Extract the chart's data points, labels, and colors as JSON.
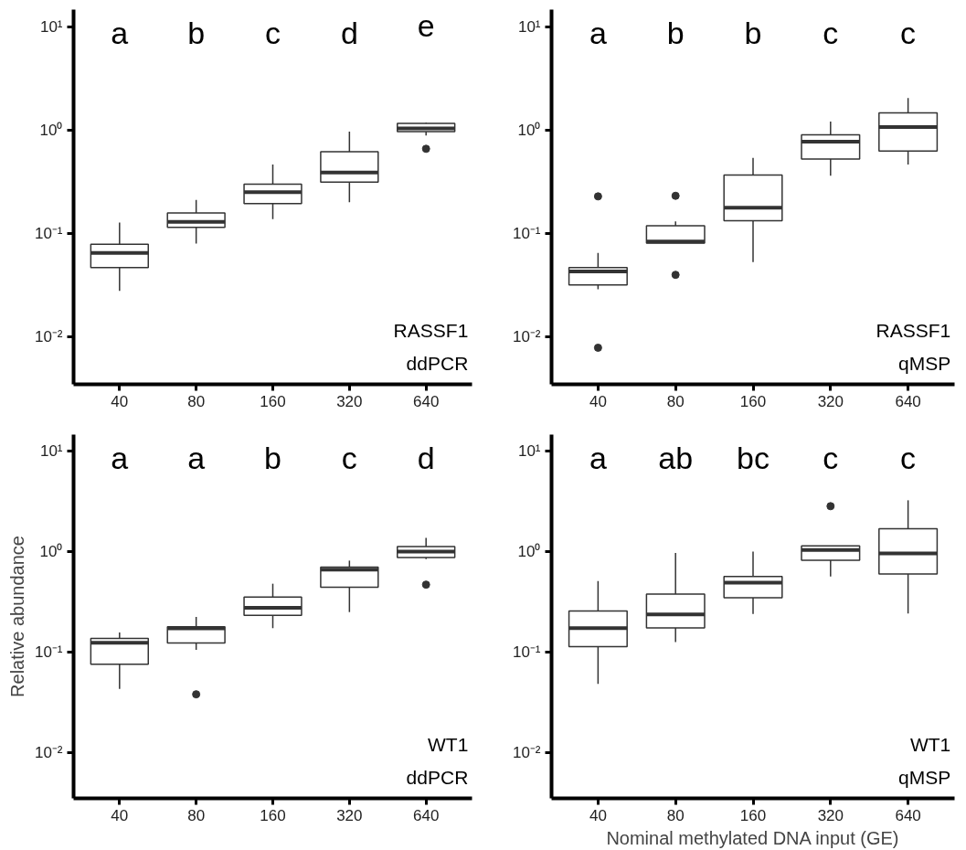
{
  "chart_data": [
    {
      "type": "box",
      "title": "RASSF1",
      "subtitle": "ddPCR",
      "categories": [
        "40",
        "80",
        "160",
        "320",
        "640"
      ],
      "log": true,
      "grid": false,
      "ylim": [
        0.0035,
        14.6
      ],
      "yticks": [
        {
          "value": 0.01,
          "label": "10⁻²"
        },
        {
          "value": 0.1,
          "label": "10⁻¹"
        },
        {
          "value": 1,
          "label": "10⁰"
        },
        {
          "value": 10,
          "label": "10¹"
        }
      ],
      "series": [
        {
          "color": "#333333",
          "boxes": [
            {
              "low": 0.028,
              "q1": 0.047,
              "median": 0.065,
              "q3": 0.079,
              "high": 0.128
            },
            {
              "low": 0.08,
              "q1": 0.115,
              "median": 0.13,
              "q3": 0.158,
              "high": 0.212
            },
            {
              "low": 0.138,
              "q1": 0.195,
              "median": 0.252,
              "q3": 0.301,
              "high": 0.465
            },
            {
              "low": 0.201,
              "q1": 0.314,
              "median": 0.389,
              "q3": 0.62,
              "high": 0.965
            },
            {
              "low": 0.885,
              "q1": 0.965,
              "median": 1.04,
              "q3": 1.16,
              "high": 1.18,
              "outliers": [
                0.66
              ]
            }
          ]
        }
      ],
      "annotations": [
        "a",
        "b",
        "c",
        "d",
        "e"
      ]
    },
    {
      "type": "box",
      "title": "RASSF1",
      "subtitle": "qMSP",
      "categories": [
        "40",
        "80",
        "160",
        "320",
        "640"
      ],
      "log": true,
      "grid": false,
      "ylim": [
        0.0035,
        14.6
      ],
      "yticks": [
        {
          "value": 0.01,
          "label": "10⁻²"
        },
        {
          "value": 0.1,
          "label": "10⁻¹"
        },
        {
          "value": 1,
          "label": "10⁰"
        },
        {
          "value": 10,
          "label": "10¹"
        }
      ],
      "series": [
        {
          "color": "#333333",
          "boxes": [
            {
              "low": 0.029,
              "q1": 0.032,
              "median": 0.043,
              "q3": 0.047,
              "high": 0.065,
              "outliers": [
                0.229,
                0.0079
              ]
            },
            {
              "low": 0.081,
              "q1": 0.081,
              "median": 0.084,
              "q3": 0.119,
              "high": 0.131,
              "outliers": [
                0.232,
                0.04
              ]
            },
            {
              "low": 0.053,
              "q1": 0.133,
              "median": 0.178,
              "q3": 0.369,
              "high": 0.538
            },
            {
              "low": 0.363,
              "q1": 0.526,
              "median": 0.774,
              "q3": 0.9,
              "high": 1.21
            },
            {
              "low": 0.466,
              "q1": 0.629,
              "median": 1.07,
              "q3": 1.47,
              "high": 2.04
            }
          ]
        }
      ],
      "annotations": [
        "a",
        "b",
        "b",
        "c",
        "c"
      ]
    },
    {
      "type": "box",
      "title": "WT1",
      "subtitle": "ddPCR",
      "ylabel": "Relative abundance",
      "categories": [
        "40",
        "80",
        "160",
        "320",
        "640"
      ],
      "log": true,
      "grid": false,
      "ylim": [
        0.0035,
        14.6
      ],
      "yticks": [
        {
          "value": 0.01,
          "label": "10⁻²"
        },
        {
          "value": 0.1,
          "label": "10⁻¹"
        },
        {
          "value": 1,
          "label": "10⁰"
        },
        {
          "value": 10,
          "label": "10¹"
        }
      ],
      "series": [
        {
          "color": "#333333",
          "boxes": [
            {
              "low": 0.043,
              "q1": 0.0757,
              "median": 0.124,
              "q3": 0.137,
              "high": 0.157
            },
            {
              "low": 0.105,
              "q1": 0.123,
              "median": 0.172,
              "q3": 0.179,
              "high": 0.224,
              "outliers": [
                0.038
              ]
            },
            {
              "low": 0.173,
              "q1": 0.232,
              "median": 0.276,
              "q3": 0.352,
              "high": 0.479
            },
            {
              "low": 0.25,
              "q1": 0.443,
              "median": 0.66,
              "q3": 0.7,
              "high": 0.813
            },
            {
              "low": 0.842,
              "q1": 0.873,
              "median": 1.0,
              "q3": 1.12,
              "high": 1.37,
              "outliers": [
                0.469
              ]
            }
          ]
        }
      ],
      "annotations": [
        "a",
        "a",
        "b",
        "c",
        "d"
      ]
    },
    {
      "type": "box",
      "title": "WT1",
      "subtitle": "qMSP",
      "xlabel": "Nominal methylated DNA input (GE)",
      "categories": [
        "40",
        "80",
        "160",
        "320",
        "640"
      ],
      "log": true,
      "grid": false,
      "ylim": [
        0.0035,
        14.6
      ],
      "yticks": [
        {
          "value": 0.01,
          "label": "10⁻²"
        },
        {
          "value": 0.1,
          "label": "10⁻¹"
        },
        {
          "value": 1,
          "label": "10⁰"
        },
        {
          "value": 10,
          "label": "10¹"
        }
      ],
      "series": [
        {
          "color": "#333333",
          "boxes": [
            {
              "low": 0.0483,
              "q1": 0.113,
              "median": 0.173,
              "q3": 0.256,
              "high": 0.508
            },
            {
              "low": 0.126,
              "q1": 0.174,
              "median": 0.237,
              "q3": 0.377,
              "high": 0.97
            },
            {
              "low": 0.24,
              "q1": 0.348,
              "median": 0.49,
              "q3": 0.565,
              "high": 1.0
            },
            {
              "low": 0.565,
              "q1": 0.819,
              "median": 1.04,
              "q3": 1.14,
              "high": 1.14,
              "outliers": [
                2.83
              ]
            },
            {
              "low": 0.242,
              "q1": 0.598,
              "median": 0.96,
              "q3": 1.69,
              "high": 3.24
            }
          ]
        }
      ],
      "annotations": [
        "a",
        "ab",
        "bc",
        "c",
        "c"
      ]
    }
  ]
}
